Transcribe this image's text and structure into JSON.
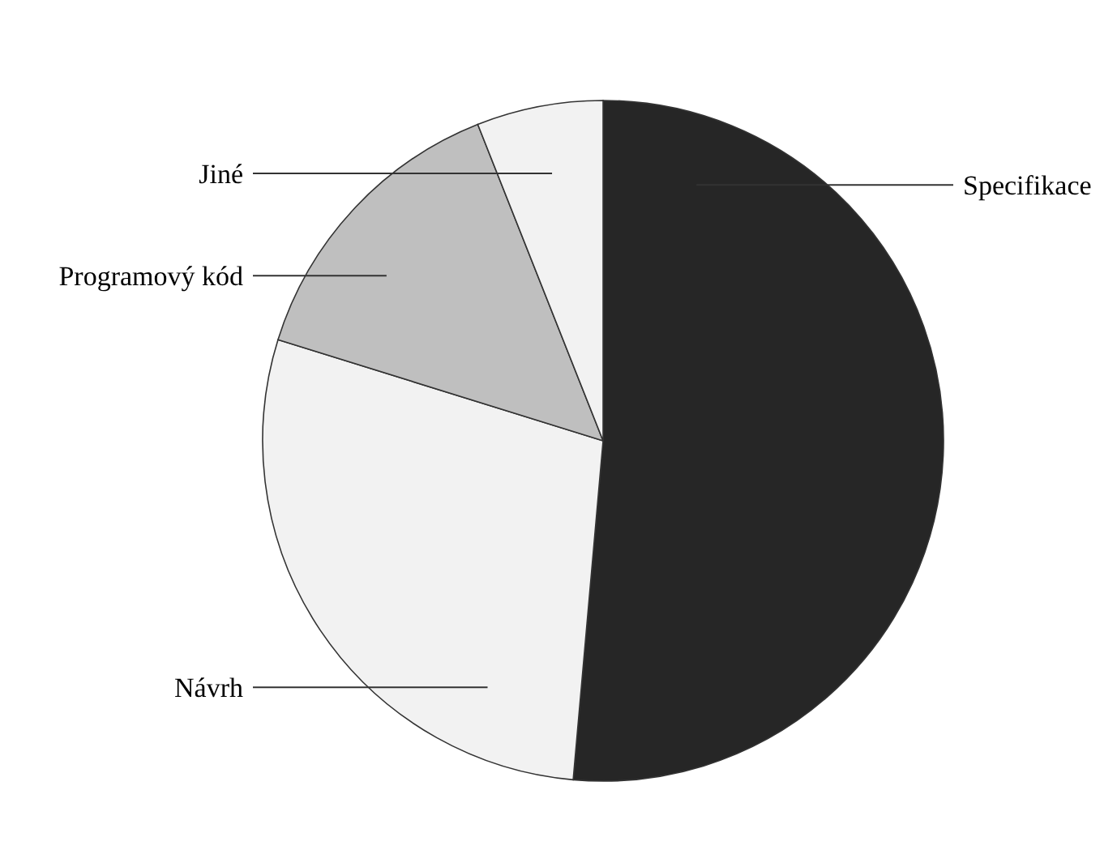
{
  "chart_data": {
    "type": "pie",
    "categories": [
      "Specifikace",
      "Návrh",
      "Programový kód",
      "Jiné"
    ],
    "values": [
      51.4,
      28.4,
      14.2,
      6.0
    ],
    "colors": [
      "#262626",
      "#f2f2f2",
      "#bfbfbf",
      "#f2f2f2"
    ]
  }
}
